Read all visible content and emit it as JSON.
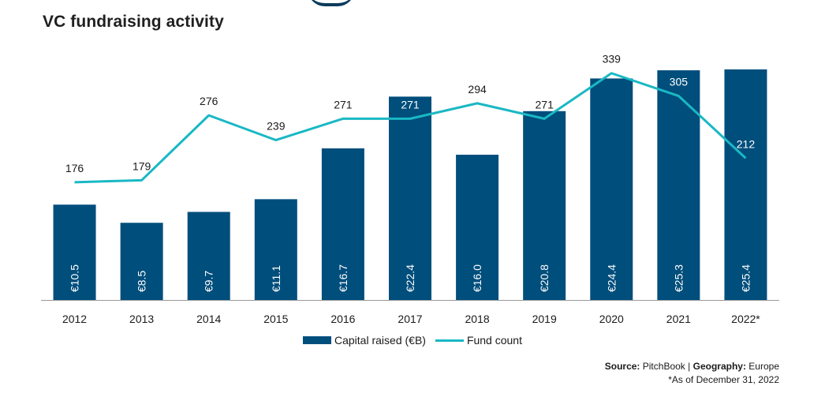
{
  "title": "VC fundraising activity",
  "colors": {
    "bar": "#004e7c",
    "line": "#1ab8c4",
    "axis": "#999999"
  },
  "chart_data": {
    "type": "bar",
    "title": "VC fundraising activity",
    "categories": [
      "2012",
      "2013",
      "2014",
      "2015",
      "2016",
      "2017",
      "2018",
      "2019",
      "2020",
      "2021",
      "2022*"
    ],
    "series": [
      {
        "name": "Capital raised (€B)",
        "type": "bar",
        "axis": "left",
        "values": [
          10.5,
          8.5,
          9.7,
          11.1,
          16.7,
          22.4,
          16.0,
          20.8,
          24.4,
          25.3,
          25.4
        ],
        "labels": [
          "€10.5",
          "€8.5",
          "€9.7",
          "€11.1",
          "€16.7",
          "€22.4",
          "€16.0",
          "€20.8",
          "€24.4",
          "€25.3",
          "€25.4"
        ]
      },
      {
        "name": "Fund count",
        "type": "line",
        "axis": "right",
        "values": [
          176,
          179,
          276,
          239,
          271,
          271,
          294,
          271,
          339,
          305,
          212
        ]
      }
    ],
    "ylim_left": [
      0,
      28
    ],
    "ylim_right": [
      0,
      380
    ],
    "grid": false,
    "legend": "bottom-center"
  },
  "legend": {
    "bar_label": "Capital raised (€B)",
    "line_label": "Fund count"
  },
  "footer": {
    "source_key": "Source:",
    "source_value": "PitchBook",
    "separator": "|",
    "geo_key": "Geography:",
    "geo_value": "Europe",
    "note": "*As of December 31, 2022"
  }
}
